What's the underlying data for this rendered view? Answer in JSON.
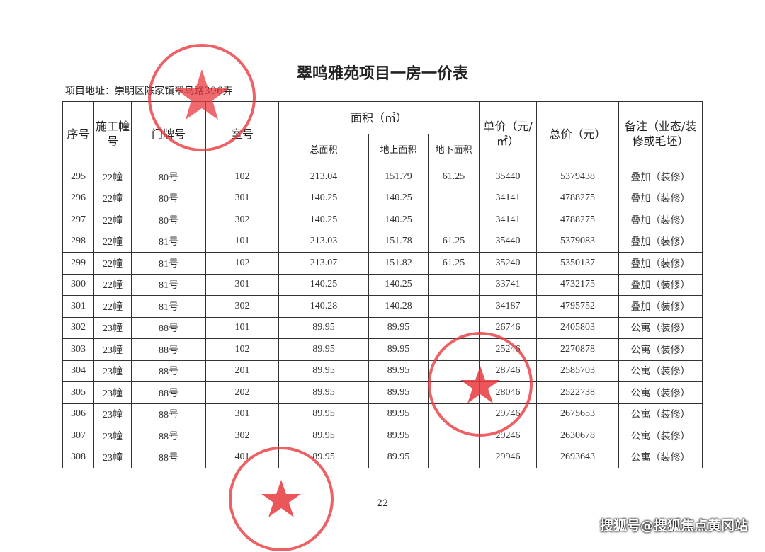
{
  "document": {
    "title": "翠鸣雅苑项目一房一价表",
    "address": "项目地址：崇明区陈家镇翠鸟路396弄",
    "page_number": "22",
    "watermark": "搜狐号@搜狐焦点黄冈站",
    "stamp_color": "#e8383d"
  },
  "table": {
    "headers": {
      "seq": "序号",
      "building": "施工幢号",
      "door": "门牌号",
      "room": "室号",
      "area": "面积（㎡）",
      "total_area": "总面积",
      "above_area": "地上面积",
      "below_area": "地下面积",
      "unit_price": "单价（元/㎡）",
      "total_price": "总价（元）",
      "remark": "备注（业态/装修或毛坯）"
    },
    "rows": [
      [
        "295",
        "22幢",
        "80号",
        "102",
        "213.04",
        "151.79",
        "61.25",
        "35440",
        "5379438",
        "叠加（装修）"
      ],
      [
        "296",
        "22幢",
        "80号",
        "301",
        "140.25",
        "140.25",
        "",
        "34141",
        "4788275",
        "叠加（装修）"
      ],
      [
        "297",
        "22幢",
        "80号",
        "302",
        "140.25",
        "140.25",
        "",
        "34141",
        "4788275",
        "叠加（装修）"
      ],
      [
        "298",
        "22幢",
        "81号",
        "101",
        "213.03",
        "151.78",
        "61.25",
        "35440",
        "5379083",
        "叠加（装修）"
      ],
      [
        "299",
        "22幢",
        "81号",
        "102",
        "213.07",
        "151.82",
        "61.25",
        "35240",
        "5350137",
        "叠加（装修）"
      ],
      [
        "300",
        "22幢",
        "81号",
        "301",
        "140.25",
        "140.25",
        "",
        "33741",
        "4732175",
        "叠加（装修）"
      ],
      [
        "301",
        "22幢",
        "81号",
        "302",
        "140.28",
        "140.28",
        "",
        "34187",
        "4795752",
        "叠加（装修）"
      ],
      [
        "302",
        "23幢",
        "88号",
        "101",
        "89.95",
        "89.95",
        "",
        "26746",
        "2405803",
        "公寓（装修）"
      ],
      [
        "303",
        "23幢",
        "88号",
        "102",
        "89.95",
        "89.95",
        "",
        "25246",
        "2270878",
        "公寓（装修）"
      ],
      [
        "304",
        "23幢",
        "88号",
        "201",
        "89.95",
        "89.95",
        "",
        "28746",
        "2585703",
        "公寓（装修）"
      ],
      [
        "305",
        "23幢",
        "88号",
        "202",
        "89.95",
        "89.95",
        "",
        "28046",
        "2522738",
        "公寓（装修）"
      ],
      [
        "306",
        "23幢",
        "88号",
        "301",
        "89.95",
        "89.95",
        "",
        "29746",
        "2675653",
        "公寓（装修）"
      ],
      [
        "307",
        "23幢",
        "88号",
        "302",
        "89.95",
        "89.95",
        "",
        "29246",
        "2630678",
        "公寓（装修）"
      ],
      [
        "308",
        "23幢",
        "88号",
        "401",
        "89.95",
        "89.95",
        "",
        "29946",
        "2693643",
        "公寓（装修）"
      ]
    ]
  }
}
